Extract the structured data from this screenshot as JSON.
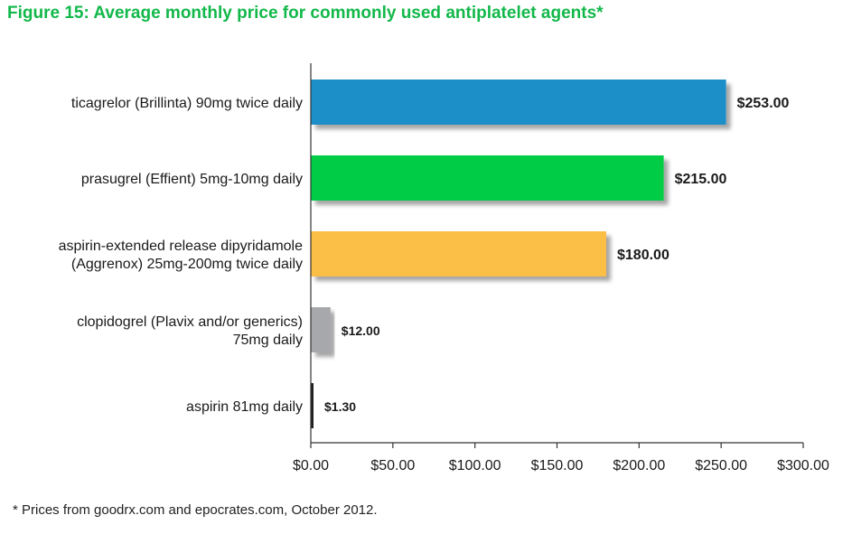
{
  "title": "Figure 15: Average monthly price for commonly used antiplatelet agents*",
  "footnote": "* Prices from goodrx.com and epocrates.com, October 2012.",
  "chart_data": {
    "type": "bar",
    "orientation": "horizontal",
    "title": "Figure 15: Average monthly price for commonly used antiplatelet agents*",
    "xlabel": "",
    "ylabel": "",
    "xlim": [
      0,
      300
    ],
    "grid": false,
    "legend": "none",
    "categories": [
      [
        "ticagrelor (Brillinta) 90mg twice daily"
      ],
      [
        "prasugrel (Effient) 5mg-10mg daily"
      ],
      [
        "aspirin-extended release dipyridamole",
        "(Aggrenox) 25mg-200mg twice daily"
      ],
      [
        "clopidogrel (Plavix and/or generics)",
        "75mg daily"
      ],
      [
        "aspirin 81mg daily"
      ]
    ],
    "values": [
      253.0,
      215.0,
      180.0,
      12.0,
      1.3
    ],
    "value_labels": [
      "$253.00",
      "$215.00",
      "$180.00",
      "$12.00",
      "$1.30"
    ],
    "colors": [
      "#1f8fc8",
      "#00cc44",
      "#fbbf47",
      "#a6a8ab",
      "#222222"
    ],
    "ticks": [
      0,
      50,
      100,
      150,
      200,
      250,
      300
    ],
    "tick_labels": [
      "$0.00",
      "$50.00",
      "$100.00",
      "$150.00",
      "$200.00",
      "$250.00",
      "$300.00"
    ]
  }
}
